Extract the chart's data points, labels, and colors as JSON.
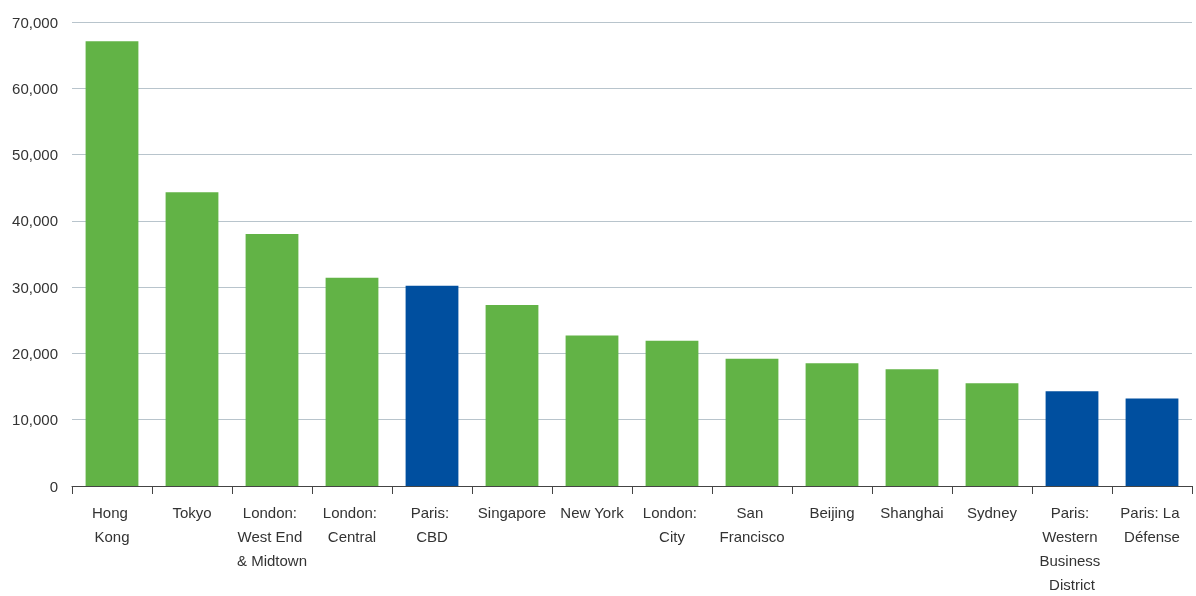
{
  "chart_data": {
    "type": "bar",
    "categories": [
      "Hong Kong",
      "Tokyo",
      "London: West End & Midtown",
      "London: Central",
      "Paris: CBD",
      "Singapore",
      "New York",
      "London: City",
      "San Francisco",
      "Beijing",
      "Shanghai",
      "Sydney",
      "Paris: Western Business District",
      "Paris: La Défense"
    ],
    "values": [
      67100,
      44300,
      38000,
      31400,
      30200,
      27300,
      22700,
      21900,
      19200,
      18500,
      17600,
      15500,
      14300,
      13200
    ],
    "colors": [
      "#62b346",
      "#62b346",
      "#62b346",
      "#62b346",
      "#004f9f",
      "#62b346",
      "#62b346",
      "#62b346",
      "#62b346",
      "#62b346",
      "#62b346",
      "#62b346",
      "#004f9f",
      "#004f9f"
    ],
    "ylim": [
      0,
      70000
    ],
    "yticks": [
      0,
      {
        "value": 10000,
        "label": "10,000"
      },
      {
        "value": 20000,
        "label": "20,000"
      },
      {
        "value": 30000,
        "label": "30,000"
      },
      {
        "value": 40000,
        "label": "40,000"
      },
      {
        "value": 50000,
        "label": "50,000"
      },
      {
        "value": 60000,
        "label": "60,000"
      },
      {
        "value": 70000,
        "label": "70,000"
      }
    ],
    "grid": "y"
  }
}
